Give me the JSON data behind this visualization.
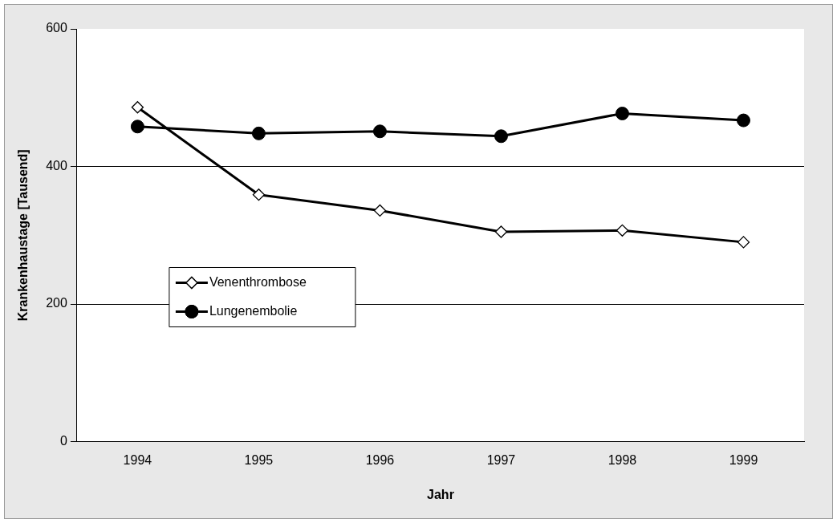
{
  "chart_data": {
    "type": "line",
    "xlabel": "Jahr",
    "ylabel": "Krankenhaustage [Tausend]",
    "categories": [
      "1994",
      "1995",
      "1996",
      "1997",
      "1998",
      "1999"
    ],
    "series": [
      {
        "name": "Venenthrombose",
        "color": "#000000",
        "marker": "diamond",
        "values": [
          486,
          359,
          336,
          305,
          307,
          290
        ]
      },
      {
        "name": "Lungenembolie",
        "color": "#000000",
        "marker": "circle",
        "values": [
          458,
          448,
          451,
          444,
          477,
          467
        ]
      }
    ],
    "ylim": [
      0,
      600
    ],
    "yticks": [
      0,
      200,
      400,
      600
    ],
    "grid": "y",
    "legend": "center left"
  }
}
